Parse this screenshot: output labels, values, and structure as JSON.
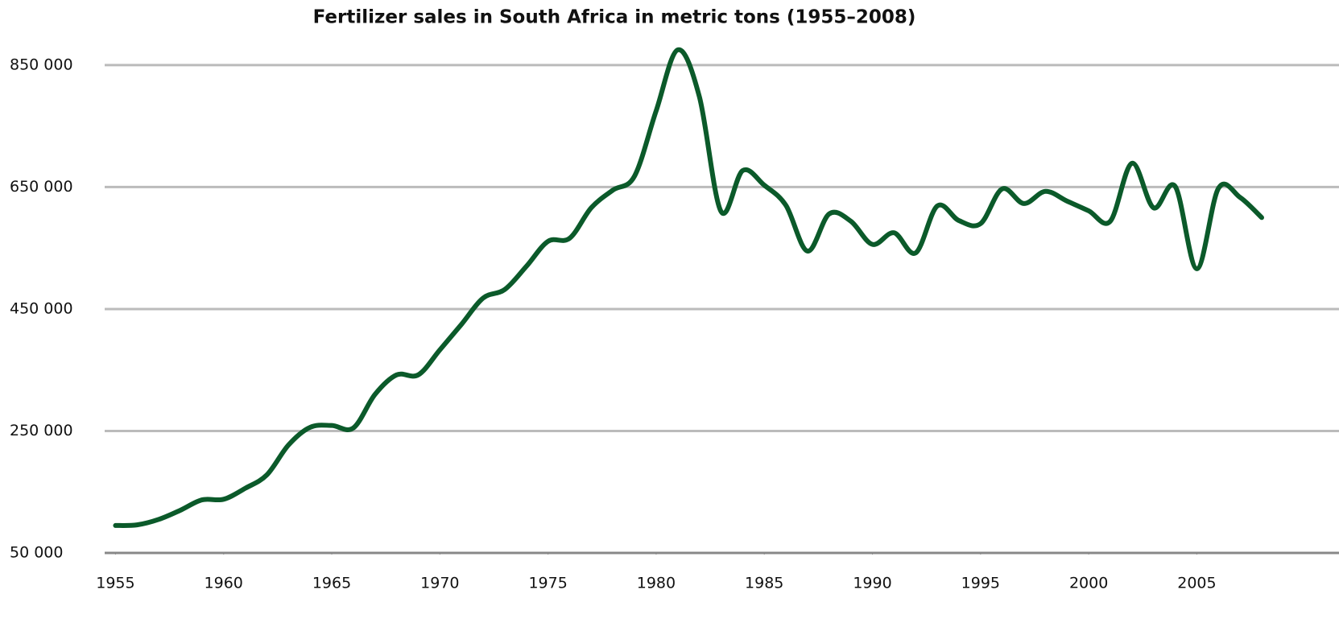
{
  "chart_data": {
    "type": "line",
    "title": "Fertilizer sales in South Africa in metric tons (1955–2008)",
    "x": [
      1955,
      1956,
      1957,
      1958,
      1959,
      1960,
      1961,
      1962,
      1963,
      1964,
      1965,
      1966,
      1967,
      1968,
      1969,
      1970,
      1971,
      1972,
      1973,
      1974,
      1975,
      1976,
      1977,
      1978,
      1979,
      1980,
      1981,
      1982,
      1983,
      1984,
      1985,
      1986,
      1987,
      1988,
      1989,
      1990,
      1991,
      1992,
      1993,
      1994,
      1995,
      1996,
      1997,
      1998,
      1999,
      2000,
      2001,
      2002,
      2003,
      2004,
      2005,
      2006,
      2007,
      2008
    ],
    "series": [
      {
        "color": "#0b5a2a",
        "values": [
          95000,
          96000,
          105000,
          120000,
          137000,
          138000,
          156000,
          178000,
          227000,
          256000,
          259000,
          255000,
          310000,
          342000,
          342000,
          383000,
          425000,
          468000,
          482000,
          520000,
          561000,
          566000,
          616000,
          645000,
          668000,
          775000,
          875000,
          798000,
          610000,
          677000,
          653000,
          620000,
          545000,
          606000,
          594000,
          556000,
          575000,
          542000,
          619000,
          595000,
          590000,
          647000,
          623000,
          643000,
          627000,
          611000,
          594000,
          689000,
          616000,
          651000,
          516000,
          648000,
          633000,
          600000
        ]
      }
    ],
    "xlim": [
      1954.5,
      2008
    ],
    "xticks": [
      1955,
      1960,
      1965,
      1970,
      1975,
      1980,
      1985,
      1990,
      1995,
      2000,
      2005
    ],
    "ylim": [
      50000,
      900000
    ],
    "yticks": [
      {
        "value": 50000,
        "label": "50 000"
      },
      {
        "value": 250000,
        "label": "250 000"
      },
      {
        "value": 450000,
        "label": "450 000"
      },
      {
        "value": 650000,
        "label": "650 000"
      },
      {
        "value": 850000,
        "label": "850 000"
      }
    ],
    "grid": true
  }
}
